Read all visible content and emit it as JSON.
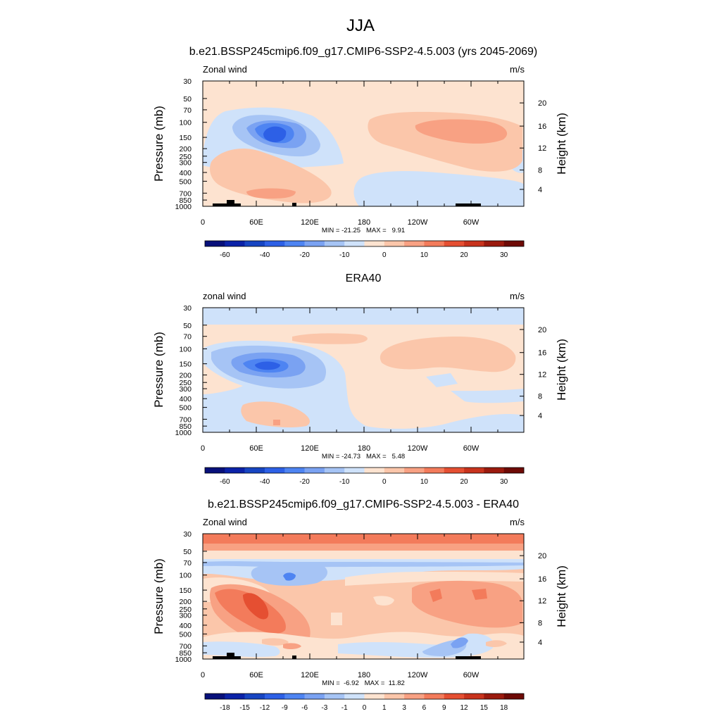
{
  "title": "JJA",
  "colors": {
    "main_palette": [
      "#08107a",
      "#0b22a8",
      "#1745c2",
      "#2d60e6",
      "#4e84f2",
      "#7aa2f2",
      "#a6c4f5",
      "#cfe2fa",
      "#fde3d0",
      "#fbc6aa",
      "#f8a183",
      "#f37b5b",
      "#e54f32",
      "#c8331d",
      "#9b1a0e",
      "#6e0a05"
    ],
    "diff_palette": [
      "#08107a",
      "#0b22a8",
      "#1745c2",
      "#2d60e6",
      "#4e84f2",
      "#7aa2f2",
      "#a6c4f5",
      "#cfe2fa",
      "#fde3d0",
      "#fbc6aa",
      "#f8a183",
      "#f37b5b",
      "#e54f32",
      "#c8331d",
      "#9b1a0e",
      "#6e0a05"
    ],
    "land": "#000000"
  },
  "chart_data": [
    {
      "type": "heatmap",
      "title": "b.e21.BSSP245cmip6.f09_g17.CMIP6-SSP2-4.5.003 (yrs 2045-2069)",
      "left_label": "Zonal wind",
      "units": "m/s",
      "ylabel": "Pressure (mb)",
      "ylabel_right": "Height (km)",
      "xticks": [
        "0",
        "60E",
        "120E",
        "180",
        "120W",
        "60W"
      ],
      "yticks": [
        "30",
        "50",
        "70",
        "100",
        "150",
        "200",
        "250",
        "300",
        "400",
        "500",
        "700",
        "850",
        "1000"
      ],
      "yticks_right": [
        "20",
        "16",
        "12",
        "8",
        "4"
      ],
      "stats": "MIN = -21.25   MAX =   9.91",
      "colorbar_labels": [
        "-60",
        "-40",
        "-20",
        "-10",
        "0",
        "10",
        "20",
        "30"
      ],
      "min": -21.25,
      "max": 9.91
    },
    {
      "type": "heatmap",
      "title": "ERA40",
      "left_label": "zonal wind",
      "units": "m/s",
      "ylabel": "Pressure (mb)",
      "ylabel_right": "Height (km)",
      "xticks": [
        "0",
        "60E",
        "120E",
        "180",
        "120W",
        "60W"
      ],
      "yticks": [
        "30",
        "50",
        "70",
        "100",
        "150",
        "200",
        "250",
        "300",
        "400",
        "500",
        "700",
        "850",
        "1000"
      ],
      "yticks_right": [
        "20",
        "16",
        "12",
        "8",
        "4"
      ],
      "stats": "MIN = -24.73   MAX =   5.48",
      "colorbar_labels": [
        "-60",
        "-40",
        "-20",
        "-10",
        "0",
        "10",
        "20",
        "30"
      ],
      "min": -24.73,
      "max": 5.48
    },
    {
      "type": "heatmap",
      "title": "b.e21.BSSP245cmip6.f09_g17.CMIP6-SSP2-4.5.003 - ERA40",
      "left_label": "Zonal wind",
      "units": "m/s",
      "ylabel": "Pressure (mb)",
      "ylabel_right": "Height (km)",
      "xticks": [
        "0",
        "60E",
        "120E",
        "180",
        "120W",
        "60W"
      ],
      "yticks": [
        "30",
        "50",
        "70",
        "100",
        "150",
        "200",
        "250",
        "300",
        "400",
        "500",
        "700",
        "850",
        "1000"
      ],
      "yticks_right": [
        "20",
        "16",
        "12",
        "8",
        "4"
      ],
      "stats": "MIN =  -6.92   MAX =  11.82",
      "colorbar_labels": [
        "-18",
        "-15",
        "-12",
        "-9",
        "-6",
        "-3",
        "-1",
        "0",
        "1",
        "3",
        "6",
        "9",
        "12",
        "15",
        "18"
      ],
      "min": -6.92,
      "max": 11.82
    }
  ]
}
